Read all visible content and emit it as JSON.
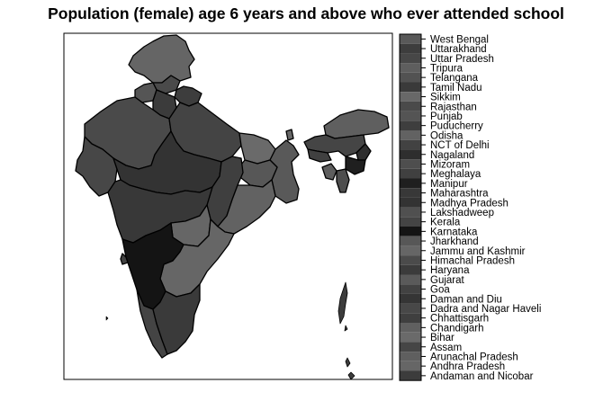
{
  "title": "Population (female) age 6 years and above who ever attended school",
  "legend": [
    {
      "label": "West Bengal",
      "color": "#595959"
    },
    {
      "label": "Uttarakhand",
      "color": "#3d3d3d"
    },
    {
      "label": "Uttar Pradesh",
      "color": "#474747"
    },
    {
      "label": "Tripura",
      "color": "#5e5e5e"
    },
    {
      "label": "Telangana",
      "color": "#525252"
    },
    {
      "label": "Tamil Nadu",
      "color": "#3a3a3a"
    },
    {
      "label": "Sikkim",
      "color": "#686868"
    },
    {
      "label": "Rajasthan",
      "color": "#4a4a4a"
    },
    {
      "label": "Punjab",
      "color": "#545454"
    },
    {
      "label": "Puducherry",
      "color": "#3e3e3e"
    },
    {
      "label": "Odisha",
      "color": "#626262"
    },
    {
      "label": "NCT of Delhi",
      "color": "#424242"
    },
    {
      "label": "Nagaland",
      "color": "#2e2e2e"
    },
    {
      "label": "Mizoram",
      "color": "#4e4e4e"
    },
    {
      "label": "Meghalaya",
      "color": "#404040"
    },
    {
      "label": "Manipur",
      "color": "#1f1f1f"
    },
    {
      "label": "Maharashtra",
      "color": "#383838"
    },
    {
      "label": "Madhya Pradesh",
      "color": "#333333"
    },
    {
      "label": "Lakshadweep",
      "color": "#505050"
    },
    {
      "label": "Kerala",
      "color": "#444444"
    },
    {
      "label": "Karnataka",
      "color": "#141414"
    },
    {
      "label": "Jharkhand",
      "color": "#575757"
    },
    {
      "label": "Jammu and Kashmir",
      "color": "#666666"
    },
    {
      "label": "Himachal Pradesh",
      "color": "#4b4b4b"
    },
    {
      "label": "Haryana",
      "color": "#3b3b3b"
    },
    {
      "label": "Gujarat",
      "color": "#5a5a5a"
    },
    {
      "label": "Goa",
      "color": "#424242"
    },
    {
      "label": "Daman and Diu",
      "color": "#353535"
    },
    {
      "label": "Dadra and Nagar Haveli",
      "color": "#484848"
    },
    {
      "label": "Chhattisgarh",
      "color": "#3f3f3f"
    },
    {
      "label": "Chandigarh",
      "color": "#606060"
    },
    {
      "label": "Bihar",
      "color": "#6a6a6a"
    },
    {
      "label": "Assam",
      "color": "#464646"
    },
    {
      "label": "Arunachal Pradesh",
      "color": "#5f5f5f"
    },
    {
      "label": "Andhra Pradesh",
      "color": "#666666"
    },
    {
      "label": "Andaman and Nicobar",
      "color": "#3c3c3c"
    }
  ],
  "regions": {
    "Jammu and Kashmir": "#656565",
    "Himachal Pradesh": "#4a4a4a",
    "Punjab": "#555555",
    "Uttarakhand": "#3d3d3d",
    "Haryana": "#3b3b3b",
    "Rajasthan": "#4a4a4a",
    "Uttar Pradesh": "#444444",
    "Bihar": "#6a6a6a",
    "Sikkim": "#686868",
    "Arunachal Pradesh": "#5f5f5f",
    "Assam": "#454545",
    "Meghalaya": "#404040",
    "Nagaland": "#2e2e2e",
    "Manipur": "#1f1f1f",
    "Mizoram": "#4e4e4e",
    "Tripura": "#5e5e5e",
    "West Bengal": "#595959",
    "Jharkhand": "#575757",
    "Gujarat": "#474747",
    "Madhya Pradesh": "#333333",
    "Chhattisgarh": "#3f3f3f",
    "Odisha": "#626262",
    "Maharashtra": "#383838",
    "Telangana": "#666666",
    "Andhra Pradesh": "#666666",
    "Karnataka": "#141414",
    "Goa": "#424242",
    "Kerala": "#444444",
    "Tamil Nadu": "#3a3a3a",
    "Andaman and Nicobar": "#3c3c3c"
  }
}
